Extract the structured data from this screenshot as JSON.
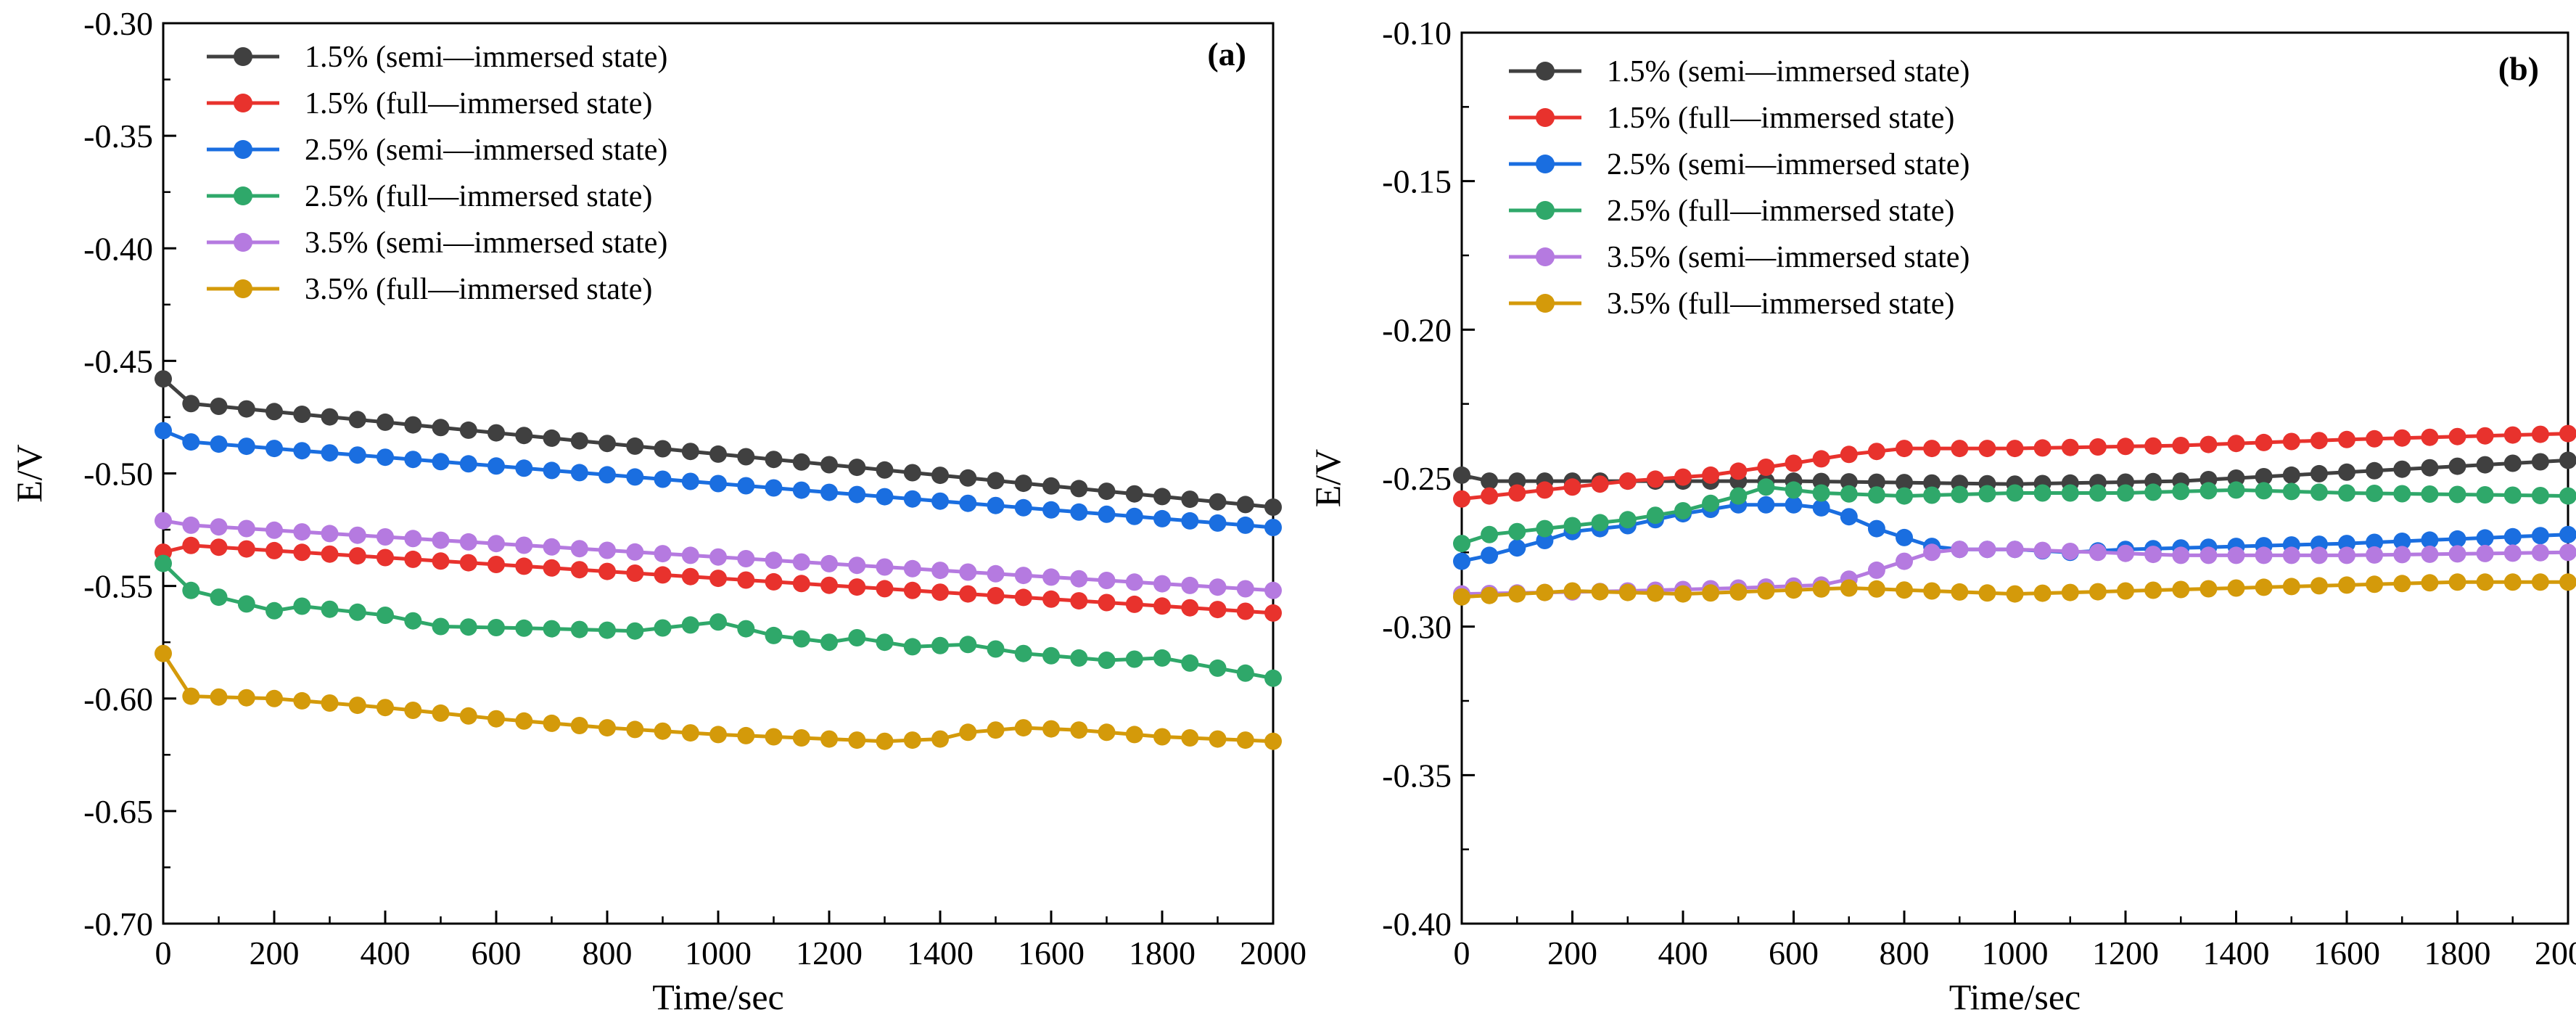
{
  "chart_data": [
    {
      "type": "line",
      "panel_label": "(a)",
      "xlabel": "Time/sec",
      "ylabel": "E/V",
      "xlim": [
        0,
        2000
      ],
      "ylim": [
        -0.7,
        -0.3
      ],
      "xticks": [
        0,
        200,
        400,
        600,
        800,
        1000,
        1200,
        1400,
        1600,
        1800,
        2000
      ],
      "xtick_labels": [
        "0",
        "200",
        "400",
        "600",
        "800",
        "1000",
        "1200",
        "1400",
        "1600",
        "1800",
        "2000"
      ],
      "yticks": [
        -0.3,
        -0.35,
        -0.4,
        -0.45,
        -0.5,
        -0.55,
        -0.6,
        -0.65,
        -0.7
      ],
      "ytick_labels": [
        "-0.30",
        "-0.35",
        "-0.40",
        "-0.45",
        "-0.50",
        "-0.55",
        "-0.60",
        "-0.65",
        "-0.70"
      ],
      "legend_position": "top-left",
      "series": [
        {
          "name": "1.5% (semi—immersed state)",
          "color": "#404040",
          "x": [
            0,
            50,
            2000
          ],
          "values": [
            -0.458,
            -0.469,
            -0.515
          ]
        },
        {
          "name": "1.5% (full—immersed state)",
          "color": "#e8322d",
          "x": [
            0,
            50,
            2000
          ],
          "values": [
            -0.535,
            -0.532,
            -0.562
          ]
        },
        {
          "name": "2.5% (semi—immersed state)",
          "color": "#1a6ee0",
          "x": [
            0,
            50,
            2000
          ],
          "values": [
            -0.481,
            -0.486,
            -0.524
          ]
        },
        {
          "name": "2.5% (full—immersed state)",
          "color": "#2fa86a",
          "x": [
            0,
            50,
            200,
            250,
            400,
            500,
            700,
            850,
            1000,
            1100,
            1200,
            1250,
            1350,
            1450,
            1550,
            1700,
            1800,
            2000
          ],
          "values": [
            -0.54,
            -0.552,
            -0.561,
            -0.559,
            -0.563,
            -0.568,
            -0.569,
            -0.57,
            -0.566,
            -0.572,
            -0.575,
            -0.573,
            -0.577,
            -0.576,
            -0.58,
            -0.583,
            -0.582,
            -0.591
          ]
        },
        {
          "name": "3.5% (semi—immersed state)",
          "color": "#b57ae0",
          "x": [
            0,
            50,
            2000
          ],
          "values": [
            -0.521,
            -0.523,
            -0.552
          ]
        },
        {
          "name": "3.5% (full—immersed state)",
          "color": "#d49a0a",
          "x": [
            0,
            50,
            200,
            400,
            600,
            800,
            1000,
            1200,
            1300,
            1400,
            1450,
            1550,
            1650,
            1800,
            2000
          ],
          "values": [
            -0.58,
            -0.599,
            -0.6,
            -0.604,
            -0.609,
            -0.613,
            -0.616,
            -0.618,
            -0.619,
            -0.618,
            -0.615,
            -0.613,
            -0.614,
            -0.617,
            -0.619
          ]
        }
      ]
    },
    {
      "type": "line",
      "panel_label": "(b)",
      "xlabel": "Time/sec",
      "ylabel": "E/V",
      "xlim": [
        0,
        2000
      ],
      "ylim": [
        -0.4,
        -0.1
      ],
      "xticks": [
        0,
        200,
        400,
        600,
        800,
        1000,
        1200,
        1400,
        1600,
        1800,
        2000
      ],
      "xtick_labels": [
        "0",
        "200",
        "400",
        "600",
        "800",
        "1000",
        "1200",
        "1400",
        "1600",
        "1800",
        "2000"
      ],
      "yticks": [
        -0.1,
        -0.15,
        -0.2,
        -0.25,
        -0.3,
        -0.35,
        -0.4
      ],
      "ytick_labels": [
        "-0.10",
        "-0.15",
        "-0.20",
        "-0.25",
        "-0.30",
        "-0.35",
        "-0.40"
      ],
      "legend_position": "top-left",
      "series": [
        {
          "name": "1.5% (semi—immersed state)",
          "color": "#404040",
          "x": [
            0,
            50,
            300,
            600,
            1000,
            1300,
            1600,
            2000
          ],
          "values": [
            -0.249,
            -0.251,
            -0.251,
            -0.251,
            -0.252,
            -0.251,
            -0.248,
            -0.244
          ]
        },
        {
          "name": "1.5% (full—immersed state)",
          "color": "#e8322d",
          "x": [
            0,
            100,
            300,
            450,
            600,
            700,
            800,
            1000,
            1300,
            1600,
            2000
          ],
          "values": [
            -0.257,
            -0.255,
            -0.251,
            -0.249,
            -0.245,
            -0.242,
            -0.24,
            -0.24,
            -0.239,
            -0.237,
            -0.235
          ]
        },
        {
          "name": "2.5% (semi—immersed state)",
          "color": "#1a6ee0",
          "x": [
            0,
            50,
            150,
            200,
            300,
            400,
            500,
            600,
            650,
            700,
            750,
            800,
            850,
            900,
            1000,
            1100,
            1200,
            1400,
            1600,
            2000
          ],
          "values": [
            -0.278,
            -0.276,
            -0.271,
            -0.268,
            -0.266,
            -0.262,
            -0.259,
            -0.259,
            -0.26,
            -0.263,
            -0.267,
            -0.27,
            -0.273,
            -0.274,
            -0.274,
            -0.275,
            -0.274,
            -0.273,
            -0.272,
            -0.269
          ]
        },
        {
          "name": "2.5% (full—immersed state)",
          "color": "#2fa86a",
          "x": [
            0,
            50,
            150,
            300,
            400,
            500,
            550,
            650,
            800,
            1000,
            1200,
            1400,
            1600,
            2000
          ],
          "values": [
            -0.272,
            -0.269,
            -0.267,
            -0.264,
            -0.261,
            -0.256,
            -0.253,
            -0.255,
            -0.256,
            -0.255,
            -0.255,
            -0.254,
            -0.255,
            -0.256
          ]
        },
        {
          "name": "3.5% (semi—immersed state)",
          "color": "#b57ae0",
          "x": [
            0,
            300,
            500,
            650,
            700,
            750,
            800,
            850,
            900,
            1000,
            1300,
            1600,
            2000
          ],
          "values": [
            -0.289,
            -0.288,
            -0.287,
            -0.286,
            -0.284,
            -0.281,
            -0.278,
            -0.275,
            -0.274,
            -0.274,
            -0.276,
            -0.276,
            -0.275
          ]
        },
        {
          "name": "3.5% (full—immersed state)",
          "color": "#d49a0a",
          "x": [
            0,
            200,
            400,
            700,
            1000,
            1400,
            1800,
            2000
          ],
          "values": [
            -0.29,
            -0.288,
            -0.289,
            -0.287,
            -0.289,
            -0.287,
            -0.285,
            -0.285
          ]
        }
      ]
    }
  ]
}
